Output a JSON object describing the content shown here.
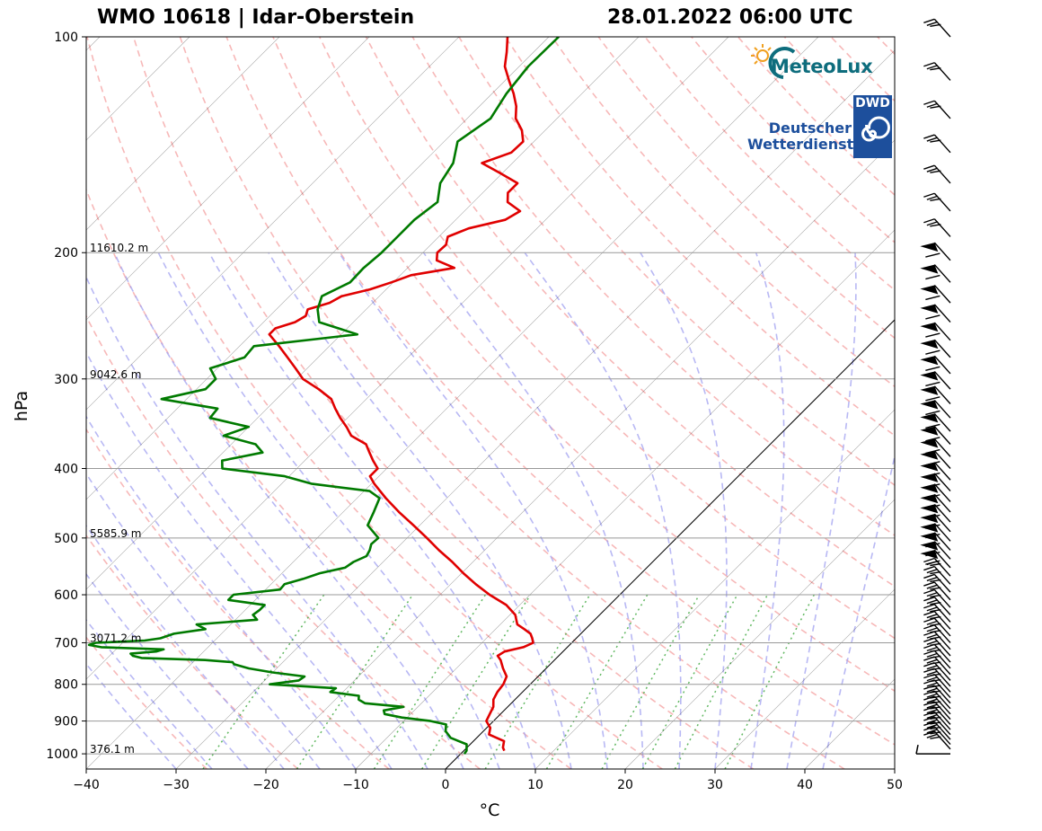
{
  "header": {
    "station": "WMO 10618 | Idar-Oberstein",
    "datetime": "28.01.2022 06:00 UTC"
  },
  "logos": {
    "meteolux": "MeteoLux",
    "dwd_line1": "Deutscher",
    "dwd_line2": "Wetterdienst",
    "dwd_abbrev": "DWD"
  },
  "colors": {
    "temperature": "#e00000",
    "dewpoint": "#007a00",
    "dry_adiabat": "#f4a0a0",
    "moist_adiabat": "#a0a0f0",
    "mixing_ratio": "#50b050",
    "isotherm": "#000000",
    "isobar": "#999999"
  },
  "chart_data": {
    "type": "skew-t log-p",
    "xlabel": "°C",
    "ylabel": "hPa",
    "x_ticks": [
      "−40",
      "−30",
      "−20",
      "−10",
      "0",
      "10",
      "20",
      "30",
      "40",
      "50"
    ],
    "x_tick_values": [
      -40,
      -30,
      -20,
      -10,
      0,
      10,
      20,
      30,
      40,
      50
    ],
    "y_ticks": [
      "100",
      "200",
      "300",
      "400",
      "500",
      "600",
      "700",
      "800",
      "900",
      "1000"
    ],
    "y_tick_values": [
      100,
      200,
      300,
      400,
      500,
      600,
      700,
      800,
      900,
      1000
    ],
    "xlim": [
      -40,
      50
    ],
    "ylim": [
      1050,
      100
    ],
    "height_labels": [
      {
        "pressure": 200,
        "label": "11610.2 m"
      },
      {
        "pressure": 300,
        "label": "9042.6 m"
      },
      {
        "pressure": 500,
        "label": "5585.9 m"
      },
      {
        "pressure": 700,
        "label": "3071.2 m"
      },
      {
        "pressure": 1000,
        "label": "376.1 m"
      }
    ],
    "series": [
      {
        "name": "temperature",
        "pressure": [
          990,
          980,
          960,
          940,
          920,
          900,
          880,
          860,
          840,
          820,
          800,
          780,
          760,
          740,
          730,
          720,
          710,
          700,
          690,
          680,
          670,
          660,
          640,
          620,
          600,
          580,
          560,
          540,
          520,
          500,
          480,
          460,
          440,
          420,
          410,
          400,
          390,
          380,
          370,
          360,
          350,
          340,
          330,
          320,
          310,
          300,
          290,
          280,
          270,
          260,
          255,
          250,
          245,
          240,
          235,
          230,
          225,
          220,
          215,
          210,
          205,
          200,
          195,
          190,
          185,
          180,
          175,
          170,
          165,
          160,
          155,
          150,
          145,
          140,
          135,
          130,
          125,
          120,
          115,
          110,
          105,
          100
        ],
        "values": [
          4.5,
          4.0,
          3.4,
          1.0,
          0.4,
          -0.8,
          -1.2,
          -1.6,
          -2.4,
          -2.8,
          -3.0,
          -3.5,
          -4.8,
          -6.0,
          -6.8,
          -6.5,
          -4.9,
          -4.3,
          -4.9,
          -5.6,
          -6.8,
          -8.1,
          -9.4,
          -11.5,
          -14.5,
          -17.2,
          -19.8,
          -22.3,
          -25.1,
          -27.8,
          -30.7,
          -33.8,
          -36.8,
          -39.7,
          -41.0,
          -41.0,
          -42.4,
          -43.7,
          -45.0,
          -47.6,
          -49.1,
          -50.8,
          -52.4,
          -53.9,
          -56.4,
          -59.3,
          -61.3,
          -63.4,
          -65.6,
          -68.0,
          -68.0,
          -66.5,
          -66.0,
          -66.5,
          -64.8,
          -64.2,
          -61.8,
          -60.2,
          -58.8,
          -54.8,
          -57.6,
          -58.4,
          -58.3,
          -59.0,
          -57.6,
          -54.5,
          -53.8,
          -56.2,
          -57.2,
          -57.2,
          -60.2,
          -63.4,
          -61.3,
          -61.2,
          -62.6,
          -64.6,
          -65.9,
          -67.6,
          -69.6,
          -71.6,
          -73.0,
          -74.6
        ]
      },
      {
        "name": "dewpoint",
        "pressure": [
          1000,
          990,
          970,
          950,
          930,
          910,
          900,
          890,
          880,
          870,
          860,
          850,
          840,
          830,
          820,
          810,
          800,
          790,
          780,
          770,
          760,
          750,
          745,
          740,
          735,
          730,
          725,
          720,
          715,
          710,
          705,
          700,
          695,
          690,
          680,
          670,
          660,
          650,
          640,
          630,
          620,
          610,
          600,
          590,
          580,
          570,
          560,
          550,
          540,
          530,
          520,
          510,
          500,
          480,
          460,
          440,
          430,
          420,
          410,
          400,
          390,
          380,
          370,
          360,
          350,
          340,
          330,
          320,
          310,
          300,
          290,
          280,
          270,
          260,
          250,
          240,
          230,
          220,
          210,
          200,
          190,
          180,
          170,
          160,
          150,
          140,
          130,
          120,
          110,
          100
        ],
        "values": [
          0.4,
          0.3,
          -0.4,
          -2.9,
          -4.2,
          -4.9,
          -7.0,
          -10.6,
          -12.9,
          -13.4,
          -11.6,
          -16.3,
          -17.4,
          -17.8,
          -21.4,
          -21.2,
          -29.0,
          -26.2,
          -26.0,
          -30.0,
          -33.1,
          -35.2,
          -35.6,
          -38.9,
          -46.2,
          -47.4,
          -47.9,
          -45.3,
          -44.7,
          -51.9,
          -53.5,
          -53.0,
          -47.8,
          -46.3,
          -45.3,
          -42.3,
          -43.8,
          -37.6,
          -38.6,
          -38.4,
          -38.4,
          -43.0,
          -43.0,
          -38.4,
          -38.5,
          -37.0,
          -35.8,
          -33.6,
          -33.3,
          -32.5,
          -32.8,
          -33.3,
          -33.2,
          -35.8,
          -36.6,
          -37.5,
          -39.4,
          -46.7,
          -50.5,
          -58.3,
          -59.2,
          -55.6,
          -57.3,
          -61.8,
          -60.0,
          -65.3,
          -65.5,
          -72.8,
          -69.0,
          -69.0,
          -70.8,
          -68.2,
          -68.4,
          -58.2,
          -63.8,
          -65.4,
          -66.4,
          -64.8,
          -64.9,
          -64.6,
          -64.6,
          -64.6,
          -64.0,
          -65.8,
          -66.6,
          -68.5,
          -67.4,
          -68.4,
          -69.0,
          -68.9
        ]
      }
    ],
    "wind_barbs": "plotted along right margin from 1000 hPa to 100 hPa"
  }
}
